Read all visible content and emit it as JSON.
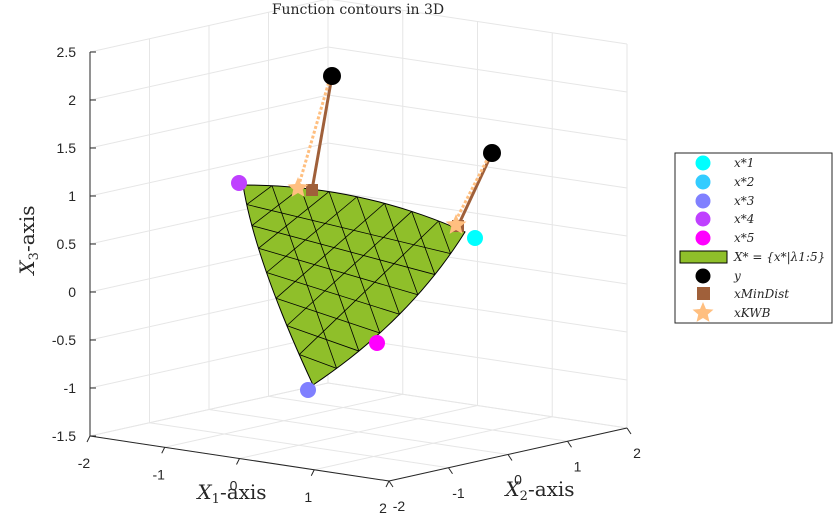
{
  "chart_data": {
    "type": "scatter",
    "title": "Function contours in 3D",
    "xlabel": "X1-axis",
    "ylabel": "X2-axis",
    "zlabel": "X3-axis",
    "xlim": [
      -2,
      2
    ],
    "ylim": [
      -2,
      2
    ],
    "zlim": [
      -1.5,
      2.5
    ],
    "x_ticks": [
      "-2",
      "-1",
      "0",
      "1",
      "2"
    ],
    "y_ticks": [
      "-2",
      "-1",
      "0",
      "1",
      "2"
    ],
    "z_ticks": [
      "-1.5",
      "-1",
      "-0.5",
      "0",
      "0.5",
      "1",
      "1.5",
      "2",
      "2.5"
    ],
    "grid": true,
    "legend_position": "right",
    "colors": {
      "x1": "#00ffff",
      "x2": "#33ccff",
      "x3": "#8080ff",
      "x4": "#bf40ff",
      "x5": "#ff00ff",
      "surface": "#8fbf2a",
      "y": "#000000",
      "mindist": "#a0603a",
      "kwb": "#ffbf80"
    },
    "series": [
      {
        "name": "x*_1",
        "points": [
          [
            1.0,
            0.0,
            0.5
          ]
        ]
      },
      {
        "name": "x*_2",
        "points": []
      },
      {
        "name": "x*_3",
        "points": [
          [
            0.0,
            -1.0,
            -1.0
          ]
        ]
      },
      {
        "name": "x*_4",
        "points": [
          [
            -1.0,
            0.0,
            1.0
          ]
        ]
      },
      {
        "name": "x*_5",
        "points": [
          [
            0.5,
            0.5,
            -0.5
          ]
        ]
      },
      {
        "name": "X* = {x*|λ1:5}",
        "type": "surface"
      },
      {
        "name": "y",
        "points": [
          [
            -0.2,
            0.6,
            2.2
          ],
          [
            1.2,
            0.4,
            1.4
          ]
        ]
      },
      {
        "name": "x_MinDist",
        "points": [
          [
            -0.5,
            0.3,
            1.0
          ],
          [
            0.7,
            0.2,
            0.6
          ]
        ]
      },
      {
        "name": "x_KWB",
        "points": [
          [
            -0.6,
            0.3,
            1.0
          ],
          [
            0.65,
            0.25,
            0.6
          ]
        ]
      }
    ],
    "legend": [
      {
        "key": "x1",
        "label": "x*1"
      },
      {
        "key": "x2",
        "label": "x*2"
      },
      {
        "key": "x3",
        "label": "x*3"
      },
      {
        "key": "x4",
        "label": "x*4"
      },
      {
        "key": "x5",
        "label": "x*5"
      },
      {
        "key": "surface",
        "label": "X* = {x*|λ1:5}"
      },
      {
        "key": "y",
        "label": "y"
      },
      {
        "key": "mindist",
        "label": "xMinDist"
      },
      {
        "key": "kwb",
        "label": "xKWB"
      }
    ]
  }
}
